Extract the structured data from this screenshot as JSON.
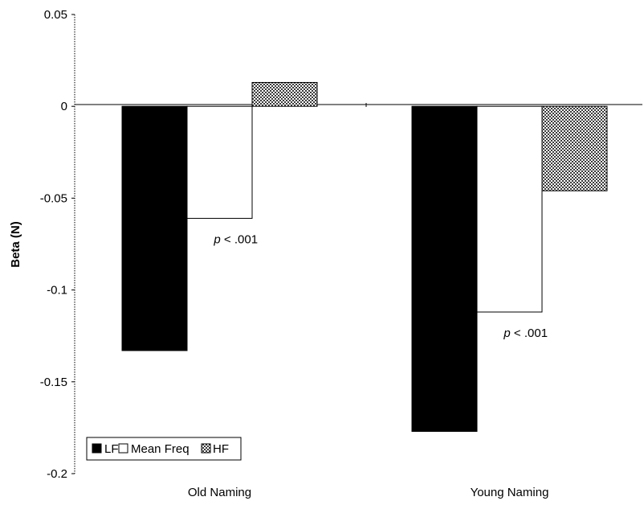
{
  "chart_data": {
    "type": "bar",
    "ylabel": "Beta (N)",
    "ylim": [
      -0.2,
      0.05
    ],
    "yticks": [
      "0.05",
      "0",
      "-0.05",
      "-0.1",
      "-0.15",
      "-0.2"
    ],
    "ytick_values": [
      0.05,
      0,
      -0.05,
      -0.1,
      -0.15,
      -0.2
    ],
    "categories": [
      "Old Naming",
      "Young Naming"
    ],
    "series": [
      {
        "name": "LF",
        "values": [
          -0.133,
          -0.177
        ],
        "fill": "#000000"
      },
      {
        "name": "Mean Freq",
        "values": [
          -0.061,
          -0.112
        ],
        "fill": "#ffffff"
      },
      {
        "name": "HF",
        "values": [
          0.013,
          -0.046
        ],
        "fill": "#d9d9d9"
      }
    ],
    "annotations": [
      {
        "category": 0,
        "p_symbol": "p",
        "text": " < .001"
      },
      {
        "category": 1,
        "p_symbol": "p",
        "text": " < .001"
      }
    ],
    "legend": {
      "position": "bottom-left",
      "items": [
        "LF",
        "Mean Freq",
        "HF"
      ]
    },
    "grid": false
  }
}
